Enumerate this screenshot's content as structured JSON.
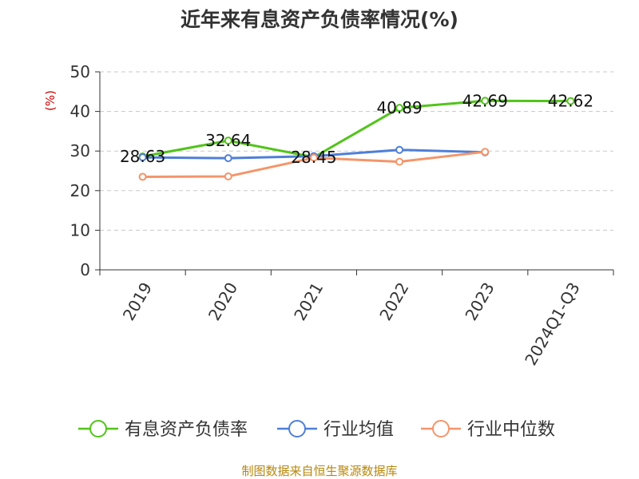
{
  "chart_data": {
    "type": "line",
    "title": "近年来有息资产负债率情况(%)",
    "ylabel": "(%)",
    "xlabel": "",
    "categories": [
      "2019",
      "2020",
      "2021",
      "2022",
      "2023",
      "2024Q1-Q3"
    ],
    "ylim": [
      0,
      50
    ],
    "yticks": [
      0,
      10,
      20,
      30,
      40,
      50
    ],
    "grid": true,
    "legend_position": "bottom",
    "series": [
      {
        "name": "有息资产负债率",
        "color": "#52c41a",
        "values": [
          28.63,
          32.64,
          28.45,
          40.89,
          42.69,
          42.62
        ],
        "labels": [
          "28.63",
          "32.64",
          "28.45",
          "40.89",
          "42.69",
          "42.62"
        ]
      },
      {
        "name": "行业均值",
        "color": "#4f7fd8",
        "values": [
          28.4,
          28.2,
          28.7,
          30.3,
          29.7,
          null
        ]
      },
      {
        "name": "行业中位数",
        "color": "#f4956a",
        "values": [
          23.5,
          23.6,
          28.3,
          27.3,
          29.8,
          null
        ]
      }
    ],
    "source": "制图数据来自恒生聚源数据库"
  }
}
